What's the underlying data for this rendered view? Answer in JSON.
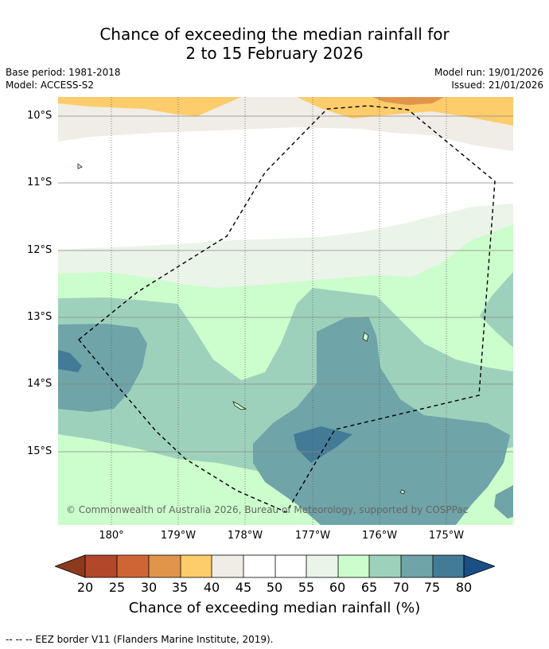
{
  "title": {
    "line1": "Chance of exceeding the median rainfall for",
    "line2": "2 to 15 February 2026"
  },
  "meta": {
    "base_period": "Base period: 1981-2018",
    "model": "Model: ACCESS-S2",
    "model_run": "Model run: 19/01/2026",
    "issued": "Issued: 21/01/2026"
  },
  "map": {
    "lat_labels": [
      "10°S",
      "11°S",
      "12°S",
      "13°S",
      "14°S",
      "15°S"
    ],
    "lon_labels": [
      "180°",
      "179°W",
      "178°W",
      "177°W",
      "176°W",
      "175°W"
    ],
    "copyright": "© Commonwealth of Australia 2026, Bureau of Meteorology, supported by COSPPac",
    "eez_label": "--  --  -- EEZ border V11 (Flanders Marine Institute, 2019)."
  },
  "colors": {
    "c_lt20": "#8c3a1e",
    "c20_25": "#b3472a",
    "c25_30": "#cf6535",
    "c30_35": "#e0954b",
    "c35_40": "#fdcc6b",
    "c40_45": "#f0ece6",
    "c45_50": "#ffffff",
    "c50_55": "#ffffff",
    "c55_60": "#eaf4e8",
    "c60_65": "#ccfdcc",
    "c65_70": "#9ed1bc",
    "c70_75": "#6fa4a8",
    "c75_80": "#437b97",
    "c_gt80": "#1a4f86"
  },
  "colorbar": {
    "ticks": [
      "20",
      "25",
      "30",
      "35",
      "40",
      "45",
      "50",
      "55",
      "60",
      "65",
      "70",
      "75",
      "80"
    ],
    "label": "Chance of exceeding median rainfall (%)"
  }
}
